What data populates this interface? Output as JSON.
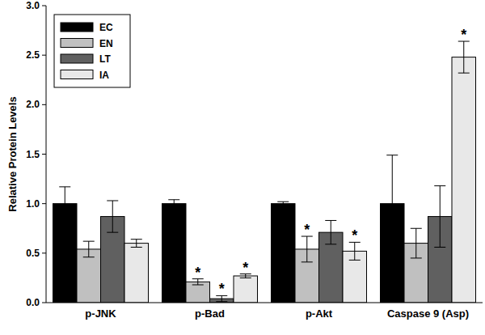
{
  "chart_data": {
    "type": "bar",
    "y_label": "Relative Protein Levels",
    "categories": [
      "p-JNK",
      "p-Bad",
      "p-Akt",
      "Caspase 9 (Asp)"
    ],
    "series": [
      {
        "name": "EC",
        "color": "#000000",
        "values": [
          1.0,
          1.0,
          1.0,
          1.0
        ],
        "errors": [
          0.17,
          0.04,
          0.02,
          0.49
        ],
        "significance": [
          null,
          null,
          null,
          null
        ]
      },
      {
        "name": "EN",
        "color": "#c0c0c0",
        "values": [
          0.54,
          0.21,
          0.54,
          0.6
        ],
        "errors": [
          0.08,
          0.03,
          0.13,
          0.15
        ],
        "significance": [
          null,
          "*",
          "*",
          null
        ]
      },
      {
        "name": "LT",
        "color": "#606060",
        "values": [
          0.87,
          0.04,
          0.71,
          0.87
        ],
        "errors": [
          0.16,
          0.03,
          0.12,
          0.31
        ],
        "significance": [
          null,
          "*",
          null,
          null
        ]
      },
      {
        "name": "IA",
        "color": "#e8e8e8",
        "values": [
          0.6,
          0.27,
          0.52,
          2.48
        ],
        "errors": [
          0.04,
          0.02,
          0.09,
          0.16
        ],
        "significance": [
          null,
          "*",
          "*",
          "*"
        ]
      }
    ],
    "ylim": [
      0,
      3
    ],
    "yticks": [
      {
        "value": 0,
        "label": "0.0"
      },
      0.5,
      {
        "value": 1,
        "label": "1.0"
      },
      1.5,
      {
        "value": 2,
        "label": "2.0"
      },
      2.5,
      {
        "value": 3,
        "label": "3.0"
      }
    ],
    "legend": "upper left",
    "grid": false
  }
}
